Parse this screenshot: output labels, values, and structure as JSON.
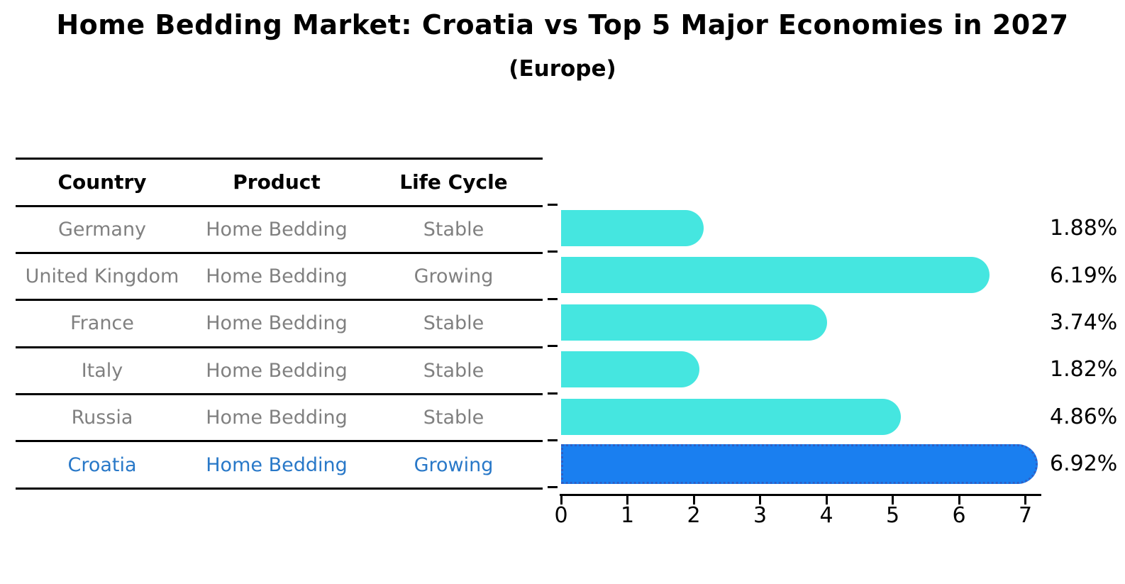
{
  "title": "Home Bedding Market: Croatia vs Top 5 Major Economies in 2027",
  "subtitle": "(Europe)",
  "table": {
    "headers": [
      "Country",
      "Product",
      "Life Cycle"
    ],
    "rows": [
      {
        "country": "Germany",
        "product": "Home Bedding",
        "life_cycle": "Stable",
        "highlight": false
      },
      {
        "country": "United Kingdom",
        "product": "Home Bedding",
        "life_cycle": "Growing",
        "highlight": false
      },
      {
        "country": "France",
        "product": "Home Bedding",
        "life_cycle": "Stable",
        "highlight": false
      },
      {
        "country": "Italy",
        "product": "Home Bedding",
        "life_cycle": "Stable",
        "highlight": false
      },
      {
        "country": "Russia",
        "product": "Home Bedding",
        "life_cycle": "Stable",
        "highlight": false
      },
      {
        "country": "Croatia",
        "product": "Home Bedding",
        "life_cycle": "Growing",
        "highlight": true
      }
    ]
  },
  "chart_data": {
    "type": "bar",
    "orientation": "horizontal",
    "categories": [
      "Germany",
      "United Kingdom",
      "France",
      "Italy",
      "Russia",
      "Croatia"
    ],
    "values": [
      1.88,
      6.19,
      3.74,
      1.82,
      4.86,
      6.92
    ],
    "value_labels": [
      "1.88%",
      "6.19%",
      "3.74%",
      "1.82%",
      "4.86%",
      "6.92%"
    ],
    "highlight_index": 5,
    "xticks": [
      "0",
      "1",
      "2",
      "3",
      "4",
      "5",
      "6",
      "7"
    ],
    "xlim": [
      0,
      7.2
    ],
    "grid": false,
    "legend": "none",
    "colors": {
      "bar": "#45e6e0",
      "highlight_bar": "#1a7ff0",
      "highlight_bar_border": "#2f5fc4",
      "highlight_text": "#2878c8",
      "row_text": "#808080",
      "header_text": "#000000"
    }
  }
}
